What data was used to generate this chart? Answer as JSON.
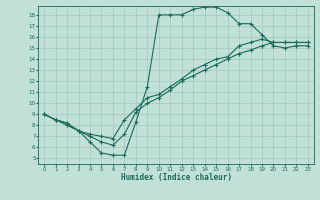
{
  "title": "",
  "xlabel": "Humidex (Indice chaleur)",
  "bg_color": "#c0e0d8",
  "line_color": "#1a6b5a",
  "grid_color": "#a0c8be",
  "xlim": [
    -0.5,
    23.5
  ],
  "ylim": [
    4.5,
    18.8
  ],
  "xticks": [
    0,
    1,
    2,
    3,
    4,
    5,
    6,
    7,
    8,
    9,
    10,
    11,
    12,
    13,
    14,
    15,
    16,
    17,
    18,
    19,
    20,
    21,
    22,
    23
  ],
  "yticks": [
    5,
    6,
    7,
    8,
    9,
    10,
    11,
    12,
    13,
    14,
    15,
    16,
    17,
    18
  ],
  "line1_x": [
    0,
    1,
    2,
    3,
    4,
    5,
    6,
    7,
    8,
    9,
    10,
    11,
    12,
    13,
    14,
    15,
    16,
    17,
    18,
    19,
    20,
    21,
    22,
    23
  ],
  "line1_y": [
    9.0,
    8.5,
    8.2,
    7.5,
    6.5,
    5.5,
    5.3,
    5.3,
    8.3,
    11.5,
    18.0,
    18.0,
    18.0,
    18.5,
    18.7,
    18.7,
    18.2,
    17.2,
    17.2,
    16.2,
    15.2,
    15.0,
    15.2,
    15.2
  ],
  "line2_x": [
    0,
    1,
    2,
    3,
    4,
    5,
    6,
    7,
    8,
    9,
    10,
    11,
    12,
    13,
    14,
    15,
    16,
    17,
    18,
    19,
    20,
    21,
    22,
    23
  ],
  "line2_y": [
    9.0,
    8.5,
    8.2,
    7.5,
    7.0,
    6.5,
    6.2,
    7.2,
    9.2,
    10.0,
    10.5,
    11.2,
    12.0,
    12.5,
    13.0,
    13.5,
    14.0,
    14.5,
    14.8,
    15.2,
    15.5,
    15.5,
    15.5,
    15.5
  ],
  "line3_x": [
    0,
    1,
    2,
    3,
    4,
    5,
    6,
    7,
    8,
    9,
    10,
    11,
    12,
    13,
    14,
    15,
    16,
    17,
    18,
    19,
    20,
    21,
    22,
    23
  ],
  "line3_y": [
    9.0,
    8.5,
    8.0,
    7.5,
    7.2,
    7.0,
    6.8,
    8.5,
    9.5,
    10.5,
    10.8,
    11.5,
    12.2,
    13.0,
    13.5,
    14.0,
    14.2,
    15.2,
    15.5,
    15.8,
    15.5,
    15.5,
    15.5,
    15.5
  ]
}
